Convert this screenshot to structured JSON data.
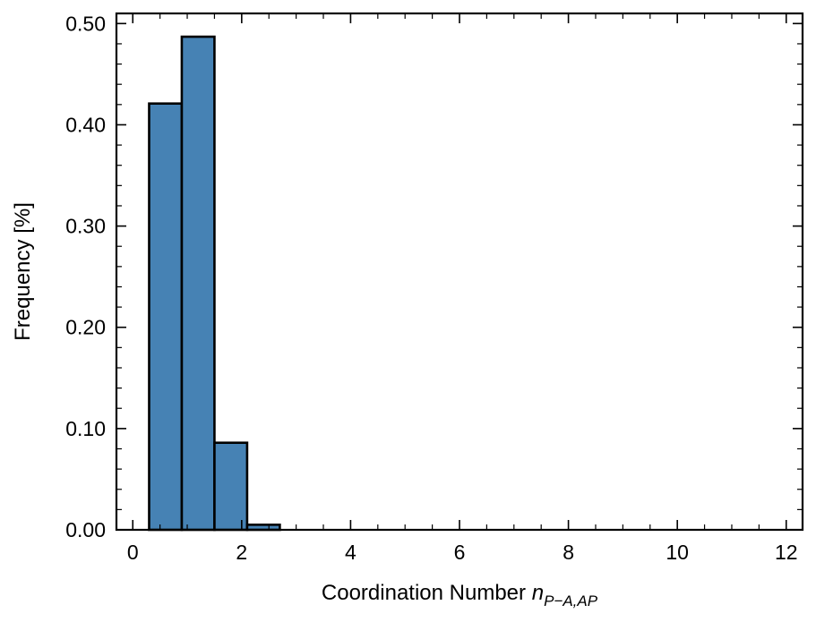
{
  "chart_data": {
    "type": "bar",
    "xlabel_main": "Coordination Number ",
    "xlabel_var": "n",
    "xlabel_sub": "P−A,AP",
    "ylabel": "Frequency [%]",
    "xlim": [
      -0.3,
      12.3
    ],
    "ylim": [
      0,
      0.51
    ],
    "x_ticks": [
      0,
      2,
      4,
      6,
      8,
      10,
      12
    ],
    "x_tick_labels": [
      "0",
      "2",
      "4",
      "6",
      "8",
      "10",
      "12"
    ],
    "y_ticks": [
      0,
      0.1,
      0.2,
      0.3,
      0.4,
      0.5
    ],
    "y_tick_labels": [
      "0.00",
      "0.10",
      "0.20",
      "0.30",
      "0.40",
      "0.50"
    ],
    "bar_color": "#4682b4",
    "bins": [
      {
        "x0": 0.3,
        "x1": 0.9,
        "value": 0.421
      },
      {
        "x0": 0.9,
        "x1": 1.5,
        "value": 0.487
      },
      {
        "x0": 1.5,
        "x1": 2.1,
        "value": 0.086
      },
      {
        "x0": 2.1,
        "x1": 2.7,
        "value": 0.005
      },
      {
        "x0": 2.7,
        "x1": 3.3,
        "value": 0
      },
      {
        "x0": 3.3,
        "x1": 3.9,
        "value": 0
      },
      {
        "x0": 3.9,
        "x1": 4.5,
        "value": 0
      },
      {
        "x0": 4.5,
        "x1": 5.1,
        "value": 0
      },
      {
        "x0": 5.1,
        "x1": 5.7,
        "value": 0
      },
      {
        "x0": 5.7,
        "x1": 6.3,
        "value": 0
      },
      {
        "x0": 6.3,
        "x1": 6.9,
        "value": 0
      },
      {
        "x0": 6.9,
        "x1": 7.5,
        "value": 0
      },
      {
        "x0": 7.5,
        "x1": 8.1,
        "value": 0
      },
      {
        "x0": 8.1,
        "x1": 8.7,
        "value": 0
      },
      {
        "x0": 8.7,
        "x1": 9.3,
        "value": 0
      },
      {
        "x0": 9.3,
        "x1": 9.9,
        "value": 0
      },
      {
        "x0": 9.9,
        "x1": 10.5,
        "value": 0
      },
      {
        "x0": 10.5,
        "x1": 11.1,
        "value": 0
      },
      {
        "x0": 11.1,
        "x1": 11.7,
        "value": 0
      }
    ],
    "grid": false,
    "legend": "none"
  }
}
